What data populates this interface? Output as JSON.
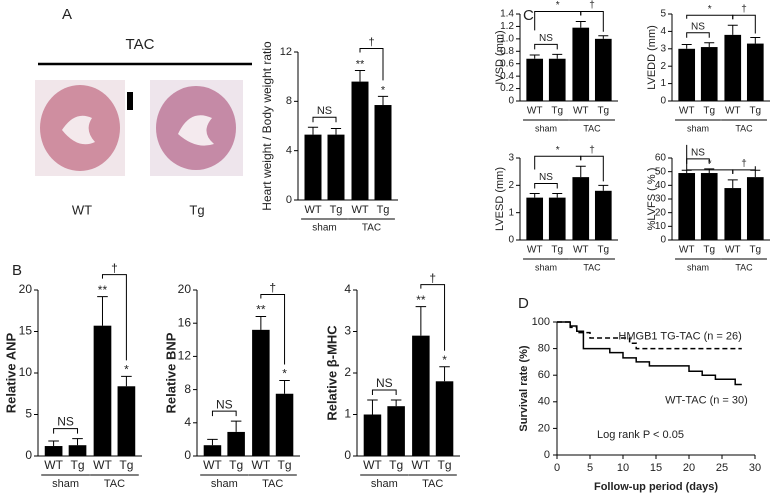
{
  "figure": {
    "panel_a": "A",
    "panel_b": "B",
    "panel_c": "C",
    "panel_d": "D",
    "tac_label": "TAC",
    "image_labels": [
      "WT",
      "Tg"
    ]
  },
  "chart_data": [
    {
      "type": "bar",
      "ylabel": "Heart weight / Body weight ratio",
      "categories": [
        "WT",
        "Tg",
        "WT",
        "Tg"
      ],
      "groups": [
        "sham",
        "TAC"
      ],
      "values": [
        5.3,
        5.3,
        9.6,
        7.7
      ],
      "errors": [
        0.6,
        0.5,
        0.9,
        0.7
      ],
      "color": "#000000",
      "ylim": [
        0,
        12
      ],
      "yticks": [
        0,
        4,
        8,
        12
      ],
      "bar_labels": [
        null,
        null,
        "**",
        "*"
      ],
      "significance": {
        "sham": "NS",
        "tac": "†"
      }
    },
    {
      "type": "bar",
      "ylabel": "Relative ANP",
      "categories": [
        "WT",
        "Tg",
        "WT",
        "Tg"
      ],
      "groups": [
        "sham",
        "TAC"
      ],
      "values": [
        1.2,
        1.3,
        15.7,
        8.4
      ],
      "errors": [
        0.6,
        0.8,
        3.5,
        1.2
      ],
      "color": "#000000",
      "ylim": [
        0,
        20
      ],
      "yticks": [
        0,
        5,
        10,
        15,
        20
      ],
      "bar_labels": [
        null,
        null,
        "**",
        "*"
      ],
      "significance": {
        "sham": "NS",
        "tac": "†"
      }
    },
    {
      "type": "bar",
      "ylabel": "Relative BNP",
      "categories": [
        "WT",
        "Tg",
        "WT",
        "Tg"
      ],
      "groups": [
        "sham",
        "TAC"
      ],
      "values": [
        1.3,
        2.9,
        15.2,
        7.5
      ],
      "errors": [
        0.7,
        1.3,
        1.6,
        1.6
      ],
      "color": "#000000",
      "ylim": [
        0,
        20
      ],
      "yticks": [
        0,
        4,
        8,
        12,
        16,
        20
      ],
      "bar_labels": [
        null,
        null,
        "**",
        "*"
      ],
      "significance": {
        "sham": "NS",
        "tac": "†"
      }
    },
    {
      "type": "bar",
      "ylabel": "Relative β-MHC",
      "categories": [
        "WT",
        "Tg",
        "WT",
        "Tg"
      ],
      "groups": [
        "sham",
        "TAC"
      ],
      "values": [
        1.0,
        1.2,
        2.9,
        1.8
      ],
      "errors": [
        0.35,
        0.15,
        0.7,
        0.35
      ],
      "color": "#000000",
      "ylim": [
        0,
        4
      ],
      "yticks": [
        0,
        1,
        2,
        3,
        4
      ],
      "bar_labels": [
        null,
        null,
        "**",
        "*"
      ],
      "significance": {
        "sham": "NS",
        "tac": "†"
      }
    },
    {
      "type": "bar",
      "ylabel": "IVSD (mm)",
      "categories": [
        "WT",
        "Tg",
        "WT",
        "Tg"
      ],
      "groups": [
        "sham",
        "TAC"
      ],
      "values": [
        0.68,
        0.68,
        1.18,
        1.0
      ],
      "errors": [
        0.06,
        0.07,
        0.1,
        0.05
      ],
      "color": "#000000",
      "ylim": [
        0,
        1.4
      ],
      "yticks": [
        0,
        0.2,
        0.4,
        0.6,
        0.8,
        {
          "value": 1,
          "label": "1.0"
        },
        1.2,
        1.4
      ],
      "significance": {
        "sham": "NS",
        "sham_vs_tac": "*",
        "tac": "†"
      }
    },
    {
      "type": "bar",
      "ylabel": "LVEDD (mm)",
      "categories": [
        "WT",
        "Tg",
        "WT",
        "Tg"
      ],
      "groups": [
        "sham",
        "TAC"
      ],
      "values": [
        3.0,
        3.1,
        3.8,
        3.3
      ],
      "errors": [
        0.25,
        0.25,
        0.55,
        0.35
      ],
      "color": "#000000",
      "ylim": [
        0,
        5
      ],
      "yticks": [
        0,
        1,
        2,
        3,
        4,
        5
      ],
      "significance": {
        "sham": "NS",
        "sham_vs_tac": "*",
        "tac": "†"
      }
    },
    {
      "type": "bar",
      "ylabel": "LVESD (mm)",
      "categories": [
        "WT",
        "Tg",
        "WT",
        "Tg"
      ],
      "groups": [
        "sham",
        "TAC"
      ],
      "values": [
        1.55,
        1.55,
        2.3,
        1.8
      ],
      "errors": [
        0.15,
        0.15,
        0.4,
        0.2
      ],
      "color": "#000000",
      "ylim": [
        0,
        3
      ],
      "yticks": [
        0,
        1,
        2,
        3
      ],
      "significance": {
        "sham": "NS",
        "sham_vs_tac": "*",
        "tac": "†"
      }
    },
    {
      "type": "bar",
      "ylabel": "%LVFS ( % )",
      "categories": [
        "WT",
        "Tg",
        "WT",
        "Tg"
      ],
      "groups": [
        "sham",
        "TAC"
      ],
      "values": [
        49,
        49,
        38,
        46
      ],
      "errors": [
        2,
        3,
        6,
        5
      ],
      "color": "#000000",
      "ylim": [
        0,
        60
      ],
      "yticks": [
        0,
        10,
        20,
        30,
        40,
        50,
        60
      ],
      "significance": {
        "sham": "NS",
        "sham_vs_tac": "*",
        "tac": "†"
      }
    },
    {
      "type": "line",
      "xlabel": "Follow-up period (days)",
      "ylabel": "Survival rate (%)",
      "annotation": "Log rank P < 0.05",
      "xlim": [
        0,
        30
      ],
      "xticks": [
        0,
        5,
        10,
        15,
        20,
        25,
        30
      ],
      "ylim": [
        0,
        100
      ],
      "yticks": [
        0,
        20,
        40,
        60,
        80,
        100
      ],
      "series": [
        {
          "name": "HMGB1 TG-TAC (n = 26)",
          "color": "#000000",
          "dashed": true,
          "x": [
            0,
            2,
            2,
            3,
            3,
            5,
            5,
            11,
            11,
            12,
            12,
            28
          ],
          "values": [
            100,
            100,
            96,
            96,
            92,
            92,
            88,
            88,
            84,
            84,
            80,
            80
          ]
        },
        {
          "name": "WT-TAC (n = 30)",
          "color": "#000000",
          "dashed": false,
          "x": [
            0,
            2,
            2,
            3,
            3,
            4,
            4,
            8,
            8,
            10,
            10,
            12,
            12,
            14,
            14,
            20,
            20,
            22,
            22,
            24,
            24,
            27,
            27,
            28
          ],
          "values": [
            100,
            100,
            97,
            97,
            93,
            93,
            80,
            80,
            77,
            77,
            73,
            73,
            70,
            70,
            67,
            67,
            63,
            63,
            60,
            60,
            57,
            57,
            53,
            53
          ]
        }
      ]
    }
  ]
}
